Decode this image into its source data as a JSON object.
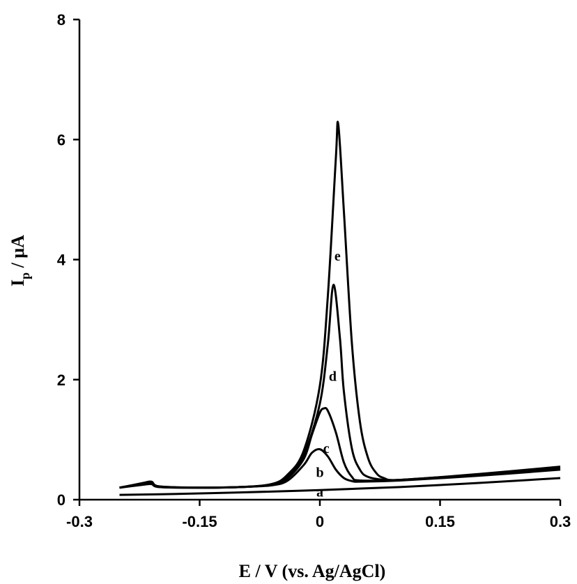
{
  "chart_data": {
    "type": "line",
    "xlabel": "E / V (vs. Ag/AgCl)",
    "ylabel_main": "I",
    "ylabel_sub": "p",
    "ylabel_rest": " / μA",
    "xlim": [
      -0.3,
      0.3
    ],
    "ylim": [
      0,
      8
    ],
    "xticks": [
      -0.3,
      -0.15,
      0,
      0.15,
      0.3
    ],
    "xtick_labels": [
      "-0.3",
      "-0.15",
      "0",
      "0.15",
      "0.3"
    ],
    "yticks": [
      0,
      2,
      4,
      6,
      8
    ],
    "ytick_labels": [
      "0",
      "2",
      "4",
      "6",
      "8"
    ],
    "grid": false,
    "legend": "none",
    "series": [
      {
        "label": "a",
        "x": [
          -0.25,
          -0.2,
          -0.1,
          0,
          0.1,
          0.2,
          0.3
        ],
        "y": [
          0.08,
          0.09,
          0.12,
          0.16,
          0.21,
          0.28,
          0.36
        ]
      },
      {
        "label": "b",
        "x": [
          -0.25,
          -0.22,
          -0.21,
          -0.2,
          -0.15,
          -0.1,
          -0.06,
          -0.04,
          -0.02,
          -0.01,
          0,
          0.01,
          0.02,
          0.03,
          0.04,
          0.05,
          0.1,
          0.2,
          0.3
        ],
        "y": [
          0.2,
          0.25,
          0.26,
          0.21,
          0.2,
          0.21,
          0.24,
          0.32,
          0.58,
          0.78,
          0.84,
          0.72,
          0.5,
          0.36,
          0.31,
          0.3,
          0.32,
          0.4,
          0.5
        ]
      },
      {
        "label": "c",
        "x": [
          -0.25,
          -0.22,
          -0.21,
          -0.2,
          -0.15,
          -0.1,
          -0.06,
          -0.04,
          -0.02,
          -0.01,
          0,
          0.005,
          0.01,
          0.02,
          0.03,
          0.04,
          0.05,
          0.1,
          0.2,
          0.3
        ],
        "y": [
          0.2,
          0.26,
          0.28,
          0.21,
          0.2,
          0.21,
          0.25,
          0.36,
          0.68,
          1.08,
          1.45,
          1.52,
          1.48,
          1.12,
          0.62,
          0.38,
          0.32,
          0.33,
          0.41,
          0.52
        ]
      },
      {
        "label": "d",
        "x": [
          -0.25,
          -0.22,
          -0.21,
          -0.2,
          -0.15,
          -0.1,
          -0.06,
          -0.04,
          -0.02,
          0,
          0.01,
          0.017,
          0.025,
          0.03,
          0.04,
          0.05,
          0.06,
          0.08,
          0.1,
          0.2,
          0.3
        ],
        "y": [
          0.2,
          0.27,
          0.29,
          0.22,
          0.2,
          0.21,
          0.26,
          0.4,
          0.75,
          1.6,
          2.6,
          3.58,
          2.7,
          1.8,
          0.85,
          0.5,
          0.38,
          0.33,
          0.33,
          0.42,
          0.53
        ]
      },
      {
        "label": "e",
        "x": [
          -0.25,
          -0.22,
          -0.21,
          -0.2,
          -0.15,
          -0.1,
          -0.06,
          -0.04,
          -0.02,
          0,
          0.01,
          0.02,
          0.023,
          0.03,
          0.04,
          0.05,
          0.06,
          0.07,
          0.08,
          0.1,
          0.2,
          0.3
        ],
        "y": [
          0.2,
          0.28,
          0.3,
          0.22,
          0.2,
          0.21,
          0.26,
          0.42,
          0.82,
          1.9,
          3.4,
          5.7,
          6.25,
          4.8,
          2.6,
          1.3,
          0.7,
          0.45,
          0.36,
          0.33,
          0.43,
          0.55
        ]
      }
    ],
    "annotations": [
      {
        "text": "a",
        "x": 0.0,
        "y": 0.05
      },
      {
        "text": "b",
        "x": 0.0,
        "y": 0.38
      },
      {
        "text": "c",
        "x": 0.008,
        "y": 0.78
      },
      {
        "text": "d",
        "x": 0.016,
        "y": 1.98
      },
      {
        "text": "e",
        "x": 0.022,
        "y": 3.98
      }
    ]
  }
}
